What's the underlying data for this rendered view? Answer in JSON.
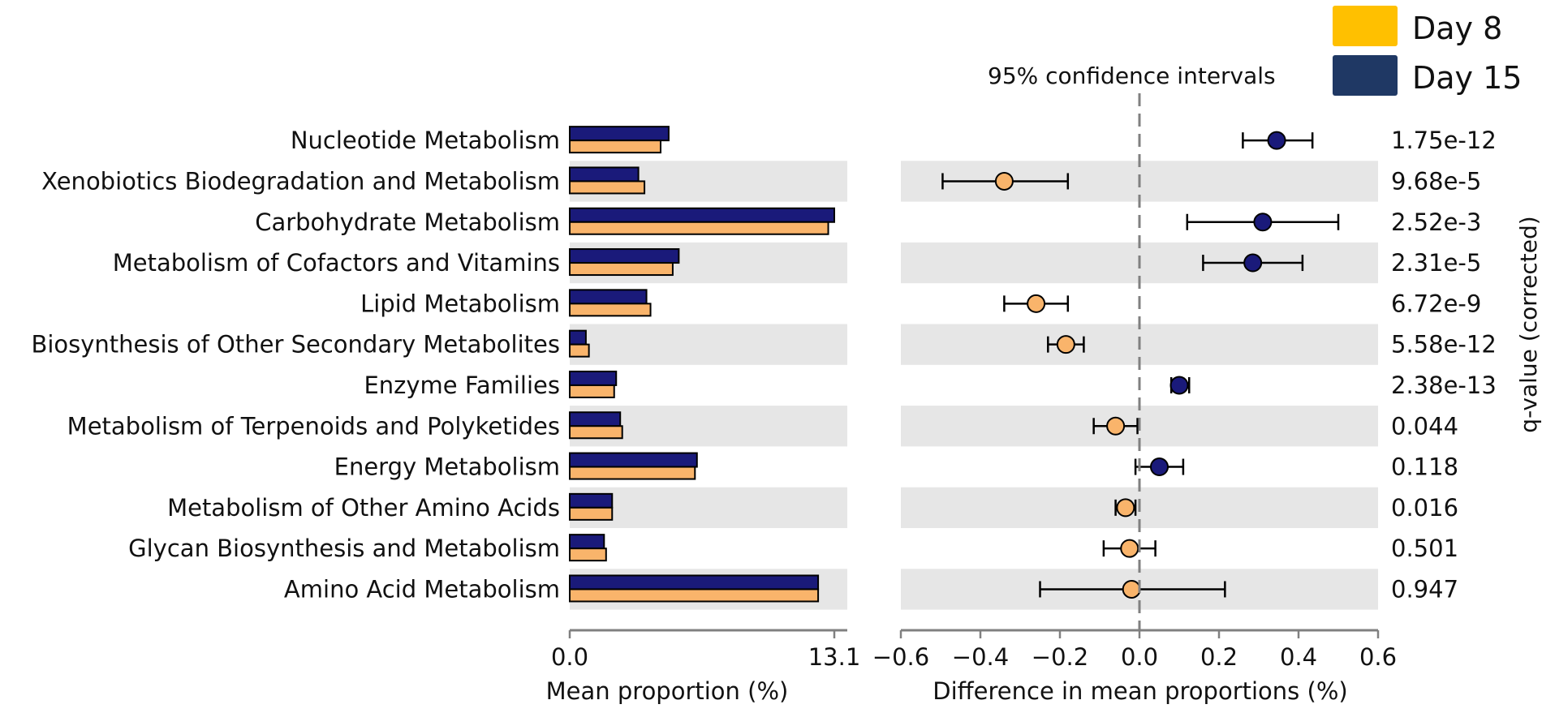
{
  "chart_data": [
    {
      "type": "bar",
      "orientation": "horizontal",
      "xlabel": "Mean proportion (%)",
      "xlim": [
        0,
        13.1
      ],
      "tick_labels": [
        "0.0",
        "13.1"
      ],
      "categories": [
        "Nucleotide Metabolism",
        "Xenobiotics Biodegradation and Metabolism",
        "Carbohydrate Metabolism",
        "Metabolism of Cofactors and Vitamins",
        "Lipid Metabolism",
        "Biosynthesis of Other Secondary Metabolites",
        "Enzyme Families",
        "Metabolism of Terpenoids and Polyketides",
        "Energy Metabolism",
        "Metabolism of Other Amino Acids",
        "Glycan Biosynthesis and Metabolism",
        "Amino Acid Metabolism"
      ],
      "series": [
        {
          "name": "Day 15",
          "color": "#1a1a7a",
          "values": [
            4.9,
            3.4,
            13.1,
            5.4,
            3.8,
            0.8,
            2.3,
            2.5,
            6.3,
            2.1,
            1.7,
            12.3
          ]
        },
        {
          "name": "Day 8",
          "color": "#f9b46b",
          "values": [
            4.5,
            3.7,
            12.8,
            5.1,
            4.0,
            0.95,
            2.2,
            2.6,
            6.2,
            2.1,
            1.8,
            12.3
          ]
        }
      ]
    },
    {
      "type": "scatter",
      "subtype": "confidence-interval",
      "annotation": "95% confidence intervals",
      "xlabel": "Difference in mean proportions (%)",
      "xlim": [
        -0.6,
        0.6
      ],
      "xticks": [
        -0.6,
        -0.4,
        -0.2,
        0.0,
        0.2,
        0.4,
        0.6
      ],
      "tick_labels": [
        "−0.6",
        "−0.4",
        "−0.2",
        "0.0",
        "0.2",
        "0.4",
        "0.6"
      ],
      "points": [
        {
          "category": "Nucleotide Metabolism",
          "diff": 0.345,
          "lo": 0.26,
          "hi": 0.435,
          "group": "Day 15"
        },
        {
          "category": "Xenobiotics Biodegradation and Metabolism",
          "diff": -0.34,
          "lo": -0.495,
          "hi": -0.18,
          "group": "Day 8"
        },
        {
          "category": "Carbohydrate Metabolism",
          "diff": 0.31,
          "lo": 0.12,
          "hi": 0.5,
          "group": "Day 15"
        },
        {
          "category": "Metabolism of Cofactors and Vitamins",
          "diff": 0.285,
          "lo": 0.16,
          "hi": 0.41,
          "group": "Day 15"
        },
        {
          "category": "Lipid Metabolism",
          "diff": -0.26,
          "lo": -0.34,
          "hi": -0.18,
          "group": "Day 8"
        },
        {
          "category": "Biosynthesis of Other Secondary Metabolites",
          "diff": -0.185,
          "lo": -0.23,
          "hi": -0.14,
          "group": "Day 8"
        },
        {
          "category": "Enzyme Families",
          "diff": 0.1,
          "lo": 0.08,
          "hi": 0.125,
          "group": "Day 15"
        },
        {
          "category": "Metabolism of Terpenoids and Polyketides",
          "diff": -0.06,
          "lo": -0.115,
          "hi": -0.005,
          "group": "Day 8"
        },
        {
          "category": "Energy Metabolism",
          "diff": 0.05,
          "lo": -0.01,
          "hi": 0.11,
          "group": "Day 15"
        },
        {
          "category": "Metabolism of Other Amino Acids",
          "diff": -0.035,
          "lo": -0.06,
          "hi": -0.01,
          "group": "Day 8"
        },
        {
          "category": "Glycan Biosynthesis and Metabolism",
          "diff": -0.025,
          "lo": -0.09,
          "hi": 0.04,
          "group": "Day 8"
        },
        {
          "category": "Amino Acid Metabolism",
          "diff": -0.02,
          "lo": -0.25,
          "hi": 0.215,
          "group": "Day 8"
        }
      ]
    }
  ],
  "qvalues": {
    "label": "q-value (corrected)",
    "values": [
      "1.75e-12",
      "9.68e-5",
      "2.52e-3",
      "2.31e-5",
      "6.72e-9",
      "5.58e-12",
      "2.38e-13",
      "0.044",
      "0.118",
      "0.016",
      "0.501",
      "0.947"
    ]
  },
  "legend": {
    "position": "top-right",
    "items": [
      {
        "label": "Day 8",
        "color": "#ffc000"
      },
      {
        "label": "Day 15",
        "color": "#1f3864"
      }
    ]
  },
  "colors": {
    "stripe": "#e6e6e6",
    "axis": "#808080",
    "day15_marker": "#1a1a7a",
    "day8_marker": "#f9b46b",
    "zero_line": "#808080"
  }
}
